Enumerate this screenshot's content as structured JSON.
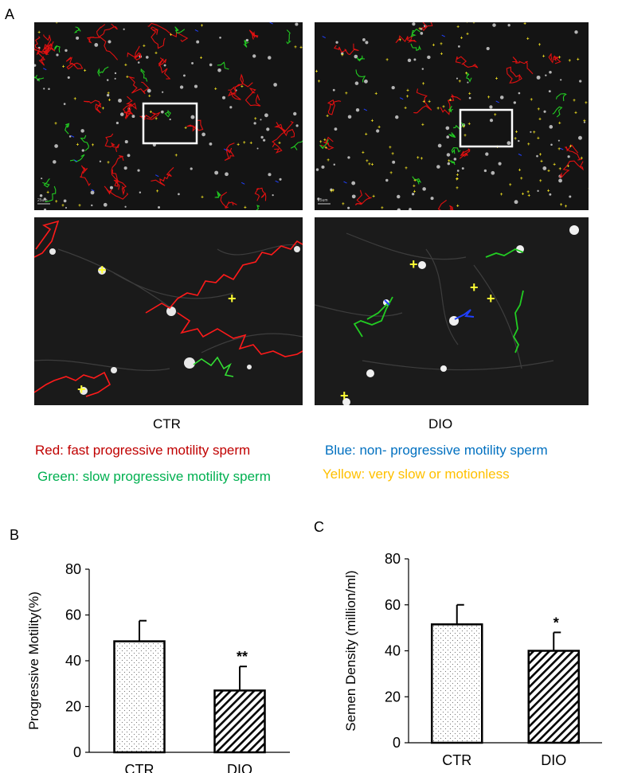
{
  "panels": {
    "a": "A",
    "b": "B",
    "c": "C"
  },
  "micrographs": {
    "scale_bar": "25um",
    "top_left_caption": "CTR",
    "top_right_caption": "DIO"
  },
  "legend": [
    {
      "text": "Red: fast progressive motility sperm",
      "color": "#c00000"
    },
    {
      "text": "Blue: non- progressive motility sperm",
      "color": "#0070c0"
    },
    {
      "text": "Green: slow progressive motility sperm",
      "color": "#00b050"
    },
    {
      "text": "Yellow: very slow or motionless",
      "color": "#ffc000"
    }
  ],
  "chart_data": [
    {
      "type": "bar",
      "panel": "B",
      "categories": [
        "CTR",
        "DIO"
      ],
      "values": [
        48.5,
        27
      ],
      "errors": [
        9,
        10.5
      ],
      "significance": [
        "",
        "**"
      ],
      "fills": [
        "dots",
        "diagonal-hatch"
      ],
      "ylabel": "Progressive Motility(%)",
      "xlabel": "",
      "ylim": [
        0,
        80
      ],
      "yticks": [
        0,
        20,
        40,
        60,
        80
      ]
    },
    {
      "type": "bar",
      "panel": "C",
      "categories": [
        "CTR",
        "DIO"
      ],
      "values": [
        51.5,
        40
      ],
      "errors": [
        8.5,
        8
      ],
      "significance": [
        "",
        "*"
      ],
      "fills": [
        "dots",
        "diagonal-hatch"
      ],
      "ylabel": "Semen Density (million/ml)",
      "xlabel": "",
      "ylim": [
        0,
        80
      ],
      "yticks": [
        0,
        20,
        40,
        60,
        80
      ]
    }
  ]
}
